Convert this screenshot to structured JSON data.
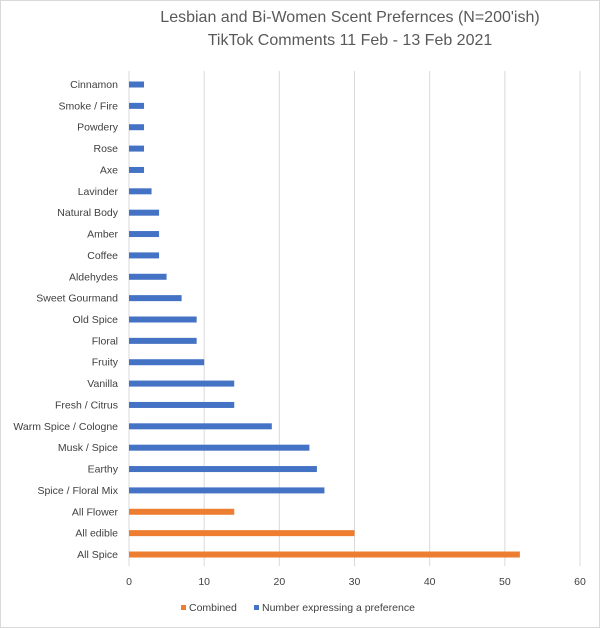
{
  "chart_data": {
    "type": "bar",
    "orientation": "horizontal",
    "title": "Lesbian and Bi-Women Scent Prefernces (N=200'ish)",
    "subtitle": "TikTok Comments 11 Feb - 13 Feb 2021",
    "categories": [
      "Cinnamon",
      "Smoke / Fire",
      "Powdery",
      "Rose",
      "Axe",
      "Lavinder",
      "Natural Body",
      "Amber",
      "Coffee",
      "Aldehydes",
      "Sweet Gourmand",
      "Old Spice",
      "Floral",
      "Fruity",
      "Vanilla",
      "Fresh / Citrus",
      "Warm Spice / Cologne",
      "Musk / Spice",
      "Earthy",
      "Spice / Floral Mix",
      "All Flower",
      "All edible",
      "All Spice"
    ],
    "series": [
      {
        "name": "Combined",
        "color": "#ED7D31",
        "values": [
          null,
          null,
          null,
          null,
          null,
          null,
          null,
          null,
          null,
          null,
          null,
          null,
          null,
          null,
          null,
          null,
          null,
          null,
          null,
          null,
          14,
          30,
          52
        ]
      },
      {
        "name": "Number expressing a preference",
        "color": "#4472C4",
        "values": [
          2,
          2,
          2,
          2,
          2,
          3,
          4,
          4,
          4,
          5,
          7,
          9,
          9,
          10,
          14,
          14,
          19,
          24,
          25,
          26,
          null,
          null,
          null
        ]
      }
    ],
    "xlim": [
      0,
      60
    ],
    "xticks": [
      0,
      10,
      20,
      30,
      40,
      50,
      60
    ],
    "grid": true,
    "legend_position": "bottom"
  }
}
